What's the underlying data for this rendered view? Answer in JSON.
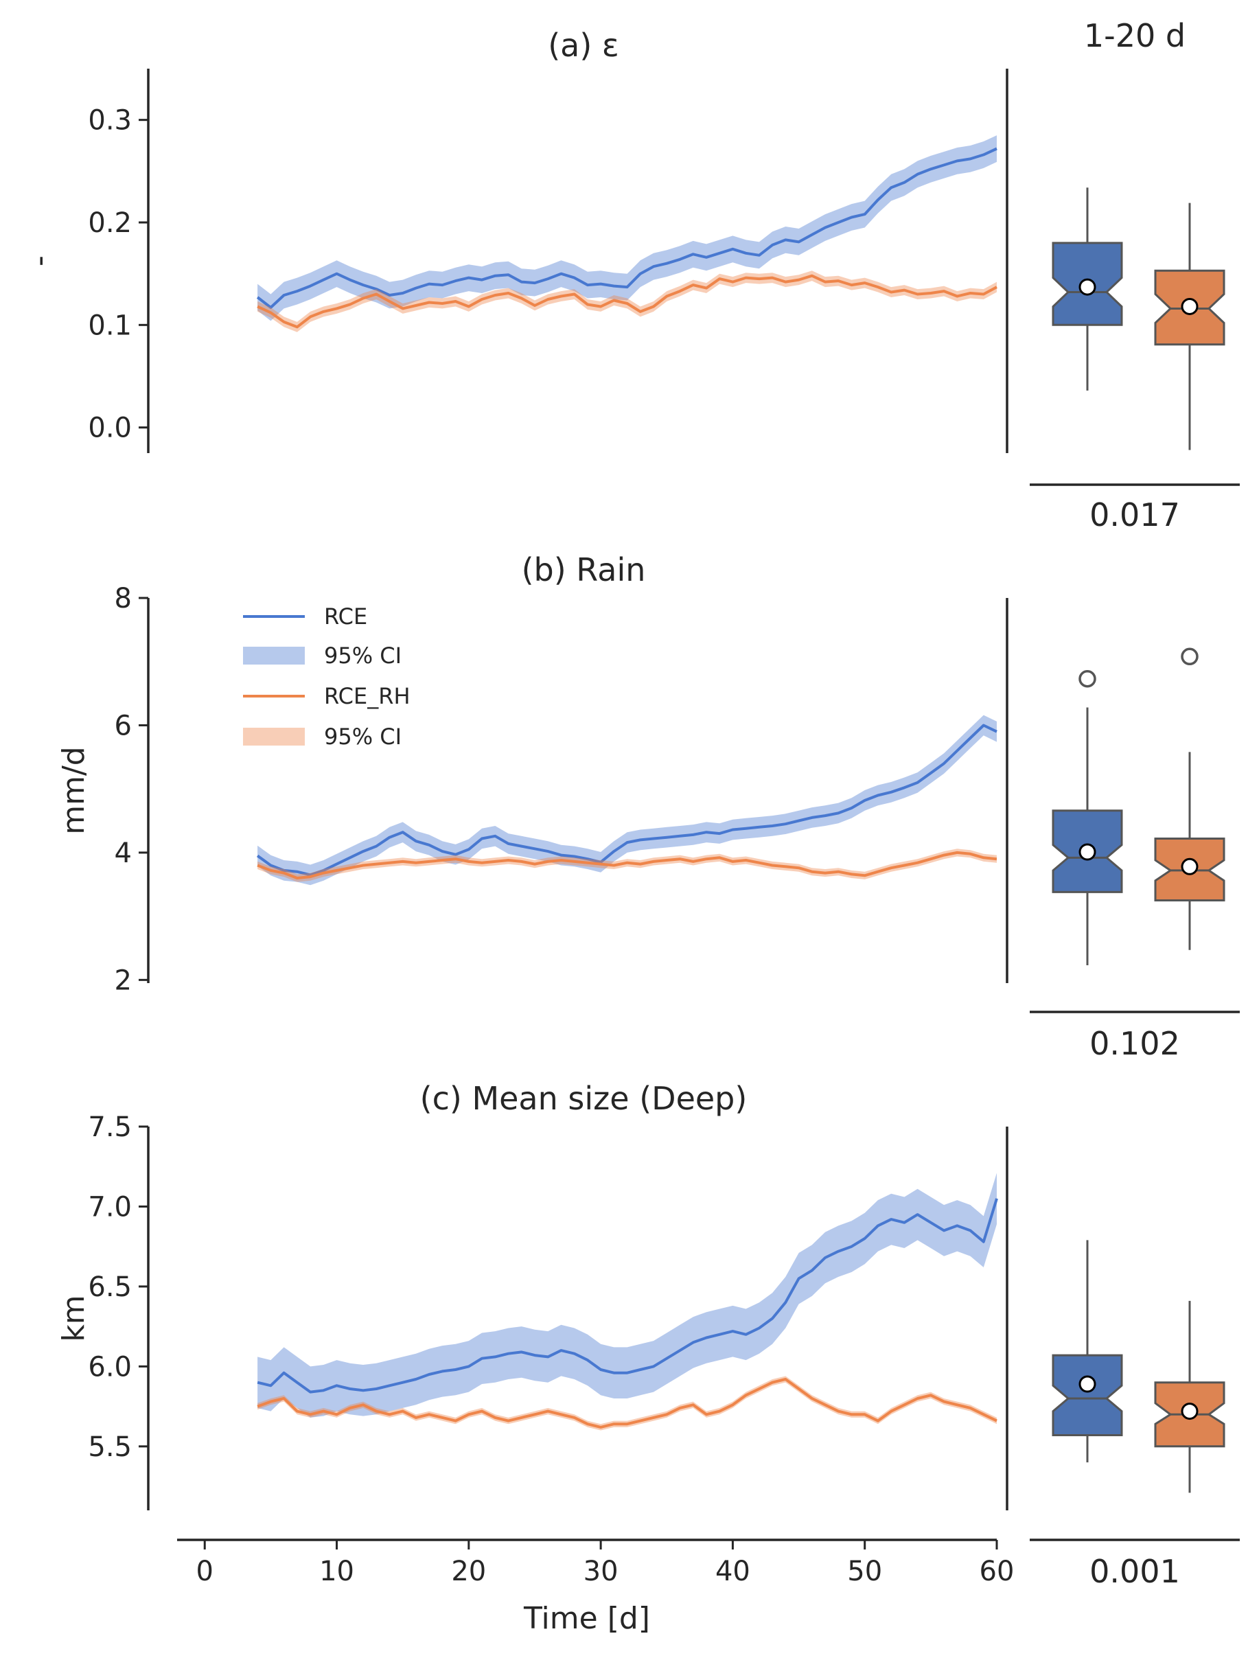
{
  "figure": {
    "xlabel": "Time [d]",
    "x_ticks": [
      0,
      10,
      20,
      30,
      40,
      50,
      60
    ],
    "box_header": "1-20 d",
    "colors": {
      "RCE": "#4878d0",
      "RCE_RH": "#ee854a",
      "RCE_box": "#4c72b0",
      "RCE_RH_box": "#dd8452",
      "axis": "#262626",
      "whisker": "#555555"
    }
  },
  "legend": {
    "location": "upper-left of panel (b)",
    "entries": [
      {
        "label": "RCE",
        "kind": "line",
        "color": "#4878d0"
      },
      {
        "label": "95% CI",
        "kind": "band",
        "color": "#4878d0"
      },
      {
        "label": "RCE_RH",
        "kind": "line",
        "color": "#ee854a"
      },
      {
        "label": "95% CI",
        "kind": "band",
        "color": "#ee854a"
      }
    ]
  },
  "chart_data": [
    {
      "type": "line",
      "title": "(a) ε",
      "ylabel": "-",
      "xlim": [
        -1,
        60
      ],
      "ylim": [
        -0.025,
        0.35
      ],
      "yticks": [
        "0.0",
        "0.1",
        "0.2",
        "0.3"
      ],
      "x": [
        4,
        5,
        6,
        7,
        8,
        9,
        10,
        11,
        12,
        13,
        14,
        15,
        16,
        17,
        18,
        19,
        20,
        21,
        22,
        23,
        24,
        25,
        26,
        27,
        28,
        29,
        30,
        31,
        32,
        33,
        34,
        35,
        36,
        37,
        38,
        39,
        40,
        41,
        42,
        43,
        44,
        45,
        46,
        47,
        48,
        49,
        50,
        51,
        52,
        53,
        54,
        55,
        56,
        57,
        58,
        59,
        60
      ],
      "series": [
        {
          "name": "RCE",
          "ci_halfwidth": 0.013,
          "values": [
            0.127,
            0.117,
            0.129,
            0.133,
            0.138,
            0.144,
            0.15,
            0.144,
            0.139,
            0.135,
            0.129,
            0.131,
            0.136,
            0.14,
            0.139,
            0.143,
            0.146,
            0.144,
            0.148,
            0.149,
            0.142,
            0.141,
            0.145,
            0.15,
            0.146,
            0.139,
            0.14,
            0.138,
            0.137,
            0.15,
            0.157,
            0.16,
            0.164,
            0.169,
            0.166,
            0.17,
            0.174,
            0.17,
            0.168,
            0.178,
            0.183,
            0.181,
            0.188,
            0.195,
            0.2,
            0.205,
            0.208,
            0.222,
            0.234,
            0.239,
            0.247,
            0.252,
            0.256,
            0.26,
            0.262,
            0.266,
            0.272
          ]
        },
        {
          "name": "RCE_RH",
          "ci_halfwidth": 0.005,
          "values": [
            0.118,
            0.112,
            0.103,
            0.098,
            0.108,
            0.113,
            0.116,
            0.12,
            0.126,
            0.13,
            0.123,
            0.116,
            0.119,
            0.122,
            0.121,
            0.123,
            0.118,
            0.125,
            0.129,
            0.131,
            0.126,
            0.119,
            0.125,
            0.128,
            0.13,
            0.12,
            0.118,
            0.124,
            0.121,
            0.113,
            0.118,
            0.128,
            0.133,
            0.139,
            0.136,
            0.145,
            0.142,
            0.146,
            0.145,
            0.146,
            0.142,
            0.144,
            0.148,
            0.142,
            0.143,
            0.139,
            0.141,
            0.137,
            0.132,
            0.134,
            0.13,
            0.131,
            0.133,
            0.128,
            0.131,
            0.13,
            0.137
          ]
        }
      ],
      "box": {
        "RCE": {
          "whisker_low": 0.036,
          "q1": 0.1,
          "median": 0.132,
          "q3": 0.18,
          "whisker_high": 0.234,
          "notch": [
            0.118,
            0.146
          ],
          "mean": 0.137,
          "outliers": []
        },
        "RCE_RH": {
          "whisker_low": -0.022,
          "q1": 0.081,
          "median": 0.116,
          "q3": 0.153,
          "whisker_high": 0.219,
          "notch": [
            0.102,
            0.13
          ],
          "mean": 0.118,
          "outliers": []
        },
        "p_value": "0.017"
      }
    },
    {
      "type": "line",
      "title": "(b) Rain",
      "ylabel": "mm/d",
      "xlim": [
        -1,
        60
      ],
      "ylim": [
        1.95,
        8.0
      ],
      "yticks": [
        "2",
        "4",
        "6",
        "8"
      ],
      "x": [
        4,
        5,
        6,
        7,
        8,
        9,
        10,
        11,
        12,
        13,
        14,
        15,
        16,
        17,
        18,
        19,
        20,
        21,
        22,
        23,
        24,
        25,
        26,
        27,
        28,
        29,
        30,
        31,
        32,
        33,
        34,
        35,
        36,
        37,
        38,
        39,
        40,
        41,
        42,
        43,
        44,
        45,
        46,
        47,
        48,
        49,
        50,
        51,
        52,
        53,
        54,
        55,
        56,
        57,
        58,
        59,
        60
      ],
      "series": [
        {
          "name": "RCE",
          "ci_halfwidth": 0.16,
          "values": [
            3.95,
            3.8,
            3.72,
            3.7,
            3.65,
            3.72,
            3.82,
            3.92,
            4.02,
            4.1,
            4.24,
            4.32,
            4.18,
            4.12,
            4.02,
            3.97,
            4.05,
            4.22,
            4.26,
            4.14,
            4.1,
            4.06,
            4.02,
            3.96,
            3.94,
            3.9,
            3.85,
            4.02,
            4.16,
            4.2,
            4.22,
            4.24,
            4.26,
            4.28,
            4.32,
            4.3,
            4.36,
            4.38,
            4.4,
            4.42,
            4.45,
            4.5,
            4.55,
            4.58,
            4.62,
            4.7,
            4.82,
            4.9,
            4.95,
            5.02,
            5.1,
            5.25,
            5.4,
            5.6,
            5.8,
            6.0,
            5.9
          ]
        },
        {
          "name": "RCE_RH",
          "ci_halfwidth": 0.06,
          "values": [
            3.8,
            3.72,
            3.68,
            3.6,
            3.62,
            3.68,
            3.72,
            3.76,
            3.8,
            3.82,
            3.84,
            3.86,
            3.84,
            3.86,
            3.88,
            3.9,
            3.86,
            3.84,
            3.86,
            3.88,
            3.86,
            3.82,
            3.86,
            3.88,
            3.86,
            3.84,
            3.82,
            3.8,
            3.84,
            3.82,
            3.86,
            3.88,
            3.9,
            3.86,
            3.9,
            3.92,
            3.86,
            3.88,
            3.84,
            3.8,
            3.78,
            3.76,
            3.7,
            3.68,
            3.7,
            3.66,
            3.64,
            3.7,
            3.76,
            3.8,
            3.84,
            3.9,
            3.96,
            4.0,
            3.98,
            3.92,
            3.9
          ]
        }
      ],
      "box": {
        "RCE": {
          "whisker_low": 2.23,
          "q1": 3.38,
          "median": 3.92,
          "q3": 4.66,
          "whisker_high": 6.28,
          "notch": [
            3.72,
            4.12
          ],
          "mean": 4.01,
          "outliers": [
            6.73
          ]
        },
        "RCE_RH": {
          "whisker_low": 2.47,
          "q1": 3.25,
          "median": 3.72,
          "q3": 4.22,
          "whisker_high": 5.58,
          "notch": [
            3.56,
            3.88
          ],
          "mean": 3.78,
          "outliers": [
            7.08
          ]
        },
        "p_value": "0.102"
      }
    },
    {
      "type": "line",
      "title": "(c) Mean size (Deep)",
      "ylabel": "km",
      "xlim": [
        -1,
        60
      ],
      "ylim": [
        5.1,
        7.5
      ],
      "yticks": [
        "5.5",
        "6.0",
        "6.5",
        "7.0",
        "7.5"
      ],
      "x": [
        4,
        5,
        6,
        7,
        8,
        9,
        10,
        11,
        12,
        13,
        14,
        15,
        16,
        17,
        18,
        19,
        20,
        21,
        22,
        23,
        24,
        25,
        26,
        27,
        28,
        29,
        30,
        31,
        32,
        33,
        34,
        35,
        36,
        37,
        38,
        39,
        40,
        41,
        42,
        43,
        44,
        45,
        46,
        47,
        48,
        49,
        50,
        51,
        52,
        53,
        54,
        55,
        56,
        57,
        58,
        59,
        60
      ],
      "series": [
        {
          "name": "RCE",
          "ci_halfwidth": 0.16,
          "values": [
            5.9,
            5.88,
            5.96,
            5.9,
            5.84,
            5.85,
            5.88,
            5.86,
            5.85,
            5.86,
            5.88,
            5.9,
            5.92,
            5.95,
            5.97,
            5.98,
            6.0,
            6.05,
            6.06,
            6.08,
            6.09,
            6.07,
            6.06,
            6.1,
            6.08,
            6.04,
            5.98,
            5.96,
            5.96,
            5.98,
            6.0,
            6.05,
            6.1,
            6.15,
            6.18,
            6.2,
            6.22,
            6.2,
            6.24,
            6.3,
            6.4,
            6.55,
            6.6,
            6.68,
            6.72,
            6.75,
            6.8,
            6.88,
            6.92,
            6.9,
            6.95,
            6.9,
            6.85,
            6.88,
            6.85,
            6.78,
            7.05
          ]
        },
        {
          "name": "RCE_RH",
          "ci_halfwidth": 0.02,
          "values": [
            5.75,
            5.78,
            5.8,
            5.72,
            5.7,
            5.72,
            5.7,
            5.74,
            5.76,
            5.72,
            5.7,
            5.72,
            5.68,
            5.7,
            5.68,
            5.66,
            5.7,
            5.72,
            5.68,
            5.66,
            5.68,
            5.7,
            5.72,
            5.7,
            5.68,
            5.64,
            5.62,
            5.64,
            5.64,
            5.66,
            5.68,
            5.7,
            5.74,
            5.76,
            5.7,
            5.72,
            5.76,
            5.82,
            5.86,
            5.9,
            5.92,
            5.86,
            5.8,
            5.76,
            5.72,
            5.7,
            5.7,
            5.66,
            5.72,
            5.76,
            5.8,
            5.82,
            5.78,
            5.76,
            5.74,
            5.7,
            5.66
          ]
        }
      ],
      "box": {
        "RCE": {
          "whisker_low": 5.4,
          "q1": 5.57,
          "median": 5.8,
          "q3": 6.07,
          "whisker_high": 6.79,
          "notch": [
            5.72,
            5.88
          ],
          "mean": 5.89,
          "outliers": []
        },
        "RCE_RH": {
          "whisker_low": 5.21,
          "q1": 5.5,
          "median": 5.7,
          "q3": 5.9,
          "whisker_high": 6.41,
          "notch": [
            5.64,
            5.77
          ],
          "mean": 5.72,
          "outliers": []
        },
        "p_value": "0.001"
      }
    }
  ]
}
